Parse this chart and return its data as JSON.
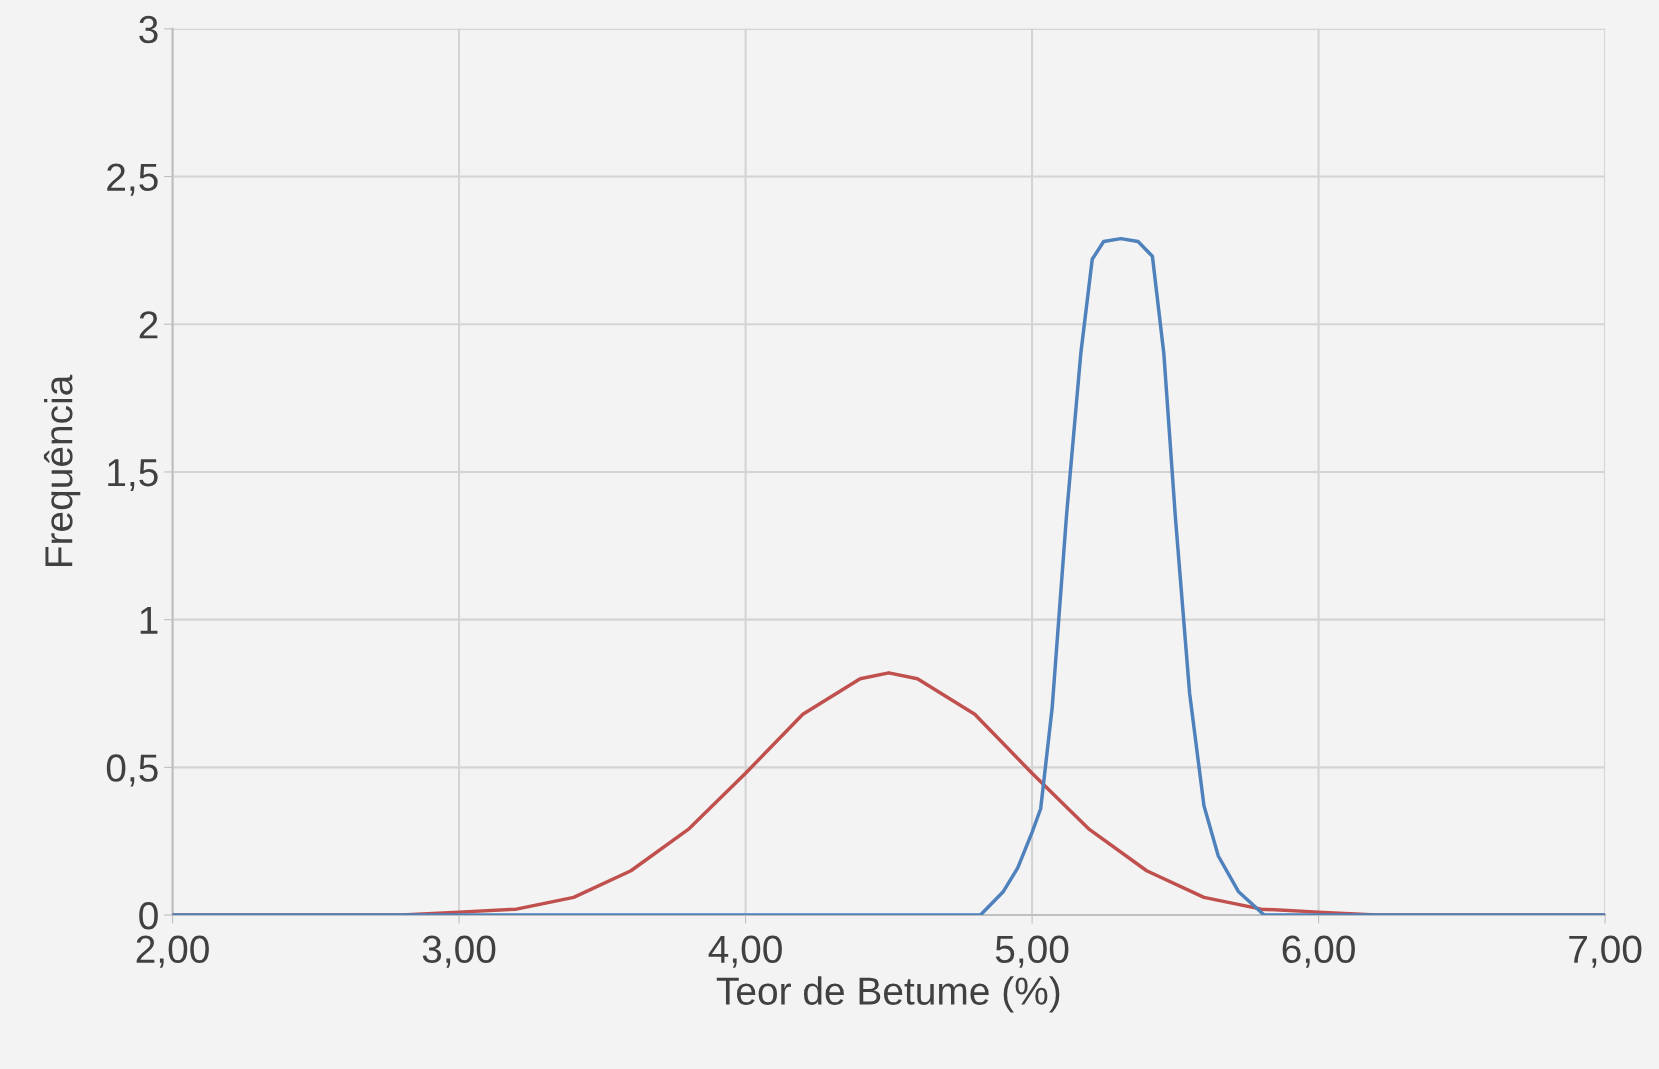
{
  "chart_data": {
    "type": "line",
    "xlabel": "Teor de Betume (%)",
    "ylabel": "Frequência",
    "xlim": [
      2,
      7
    ],
    "ylim": [
      0,
      3
    ],
    "xticks": [
      {
        "value": 2,
        "label": "2,00"
      },
      {
        "value": 3,
        "label": "3,00"
      },
      {
        "value": 4,
        "label": "4,00"
      },
      {
        "value": 5,
        "label": "5,00"
      },
      {
        "value": 6,
        "label": "6,00"
      },
      {
        "value": 7,
        "label": "7,00"
      }
    ],
    "yticks": [
      0,
      {
        "value": 0.5,
        "label": "0,5"
      },
      1,
      {
        "value": 1.5,
        "label": "1,5"
      },
      2,
      {
        "value": 2.5,
        "label": "2,5"
      },
      3
    ],
    "grid": true,
    "marker": "none",
    "line_style": "solid",
    "series": [
      {
        "color": "#c0504d",
        "x": [
          2.0,
          2.5,
          2.8,
          3.0,
          3.2,
          3.4,
          3.6,
          3.8,
          4.0,
          4.2,
          4.4,
          4.5,
          4.6,
          4.8,
          5.0,
          5.2,
          5.4,
          5.6,
          5.8,
          6.0,
          6.2,
          6.5,
          7.0
        ],
        "values": [
          0,
          0,
          0,
          0.01,
          0.02,
          0.06,
          0.15,
          0.29,
          0.48,
          0.68,
          0.8,
          0.82,
          0.8,
          0.68,
          0.48,
          0.29,
          0.15,
          0.06,
          0.02,
          0.01,
          0,
          0,
          0
        ]
      },
      {
        "color": "#4f81bd",
        "x": [
          2.0,
          4.5,
          4.82,
          4.9,
          4.95,
          5.0,
          5.03,
          5.07,
          5.12,
          5.17,
          5.21,
          5.25,
          5.31,
          5.37,
          5.42,
          5.46,
          5.5,
          5.55,
          5.6,
          5.65,
          5.72,
          5.81,
          6.0,
          7.0
        ],
        "values": [
          0,
          0,
          0,
          0.08,
          0.16,
          0.28,
          0.36,
          0.7,
          1.35,
          1.9,
          2.22,
          2.28,
          2.29,
          2.28,
          2.23,
          1.9,
          1.35,
          0.75,
          0.37,
          0.2,
          0.08,
          0,
          0,
          0
        ]
      }
    ]
  }
}
